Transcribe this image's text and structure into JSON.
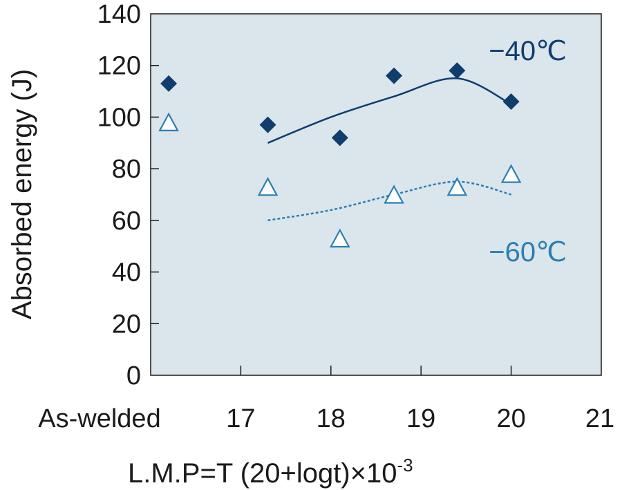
{
  "chart_data": {
    "type": "scatter",
    "xlabel": "L.M.P=T (20+logt)×10",
    "xlabel_superscript": "-3",
    "ylabel": "Absorbed energy (J)",
    "ylim": [
      0,
      140
    ],
    "yticks": [
      "0",
      "20",
      "40",
      "60",
      "80",
      "100",
      "120",
      "140"
    ],
    "xlim": [
      16,
      21
    ],
    "xticks": [
      {
        "value": 16,
        "label": "As-welded"
      },
      {
        "value": 17,
        "label": "17"
      },
      {
        "value": 18,
        "label": "18"
      },
      {
        "value": 19,
        "label": "19"
      },
      {
        "value": 20,
        "label": "20"
      },
      {
        "value": 21,
        "label": "21"
      }
    ],
    "grid": false,
    "colors": {
      "plot_background": "#dbe5ec",
      "series_40": "#0f3d6e",
      "series_60": "#2a7fb0"
    },
    "series": [
      {
        "name": "−40℃",
        "marker": "filled-diamond",
        "points": [
          {
            "x": "As-welded",
            "y": 113
          },
          {
            "x": 17.3,
            "y": 97
          },
          {
            "x": 18.1,
            "y": 92
          },
          {
            "x": 18.7,
            "y": 116
          },
          {
            "x": 19.4,
            "y": 118
          },
          {
            "x": 20.0,
            "y": 106
          }
        ],
        "trend": {
          "style": "solid",
          "points": [
            [
              17.3,
              90
            ],
            [
              18.0,
              100
            ],
            [
              18.7,
              108
            ],
            [
              19.4,
              115
            ],
            [
              20.0,
              105
            ]
          ]
        }
      },
      {
        "name": "−60℃",
        "marker": "open-triangle",
        "points": [
          {
            "x": "As-welded",
            "y": 98
          },
          {
            "x": 17.3,
            "y": 73
          },
          {
            "x": 18.1,
            "y": 53
          },
          {
            "x": 18.7,
            "y": 70
          },
          {
            "x": 19.4,
            "y": 73
          },
          {
            "x": 20.0,
            "y": 78
          }
        ],
        "trend": {
          "style": "dotted",
          "points": [
            [
              17.3,
              60
            ],
            [
              18.0,
              64
            ],
            [
              18.7,
              70
            ],
            [
              19.4,
              75
            ],
            [
              20.0,
              70
            ]
          ]
        }
      }
    ]
  }
}
